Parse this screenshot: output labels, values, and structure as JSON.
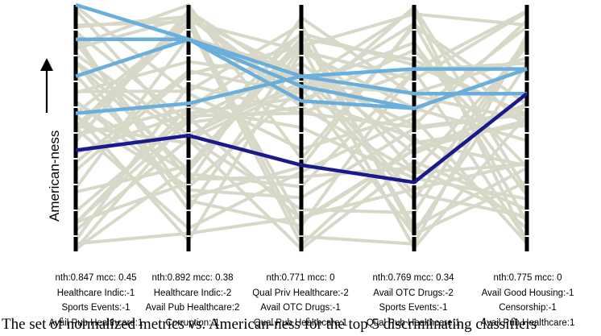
{
  "chart_data": {
    "type": "parallel-coordinates",
    "ylabel": "American-ness",
    "axes": [
      {
        "lines": [
          "nth:0.847 mcc: 0.45",
          "Healthcare Indic:-1",
          "Sports Events:-1",
          "Avail Pub Healthcare:1"
        ]
      },
      {
        "lines": [
          "nth:0.892 mcc: 0.38",
          "Healthcare Indic:-2",
          "Avail Pub Healthcare:2",
          "Corruption:-1"
        ]
      },
      {
        "lines": [
          "nth:0.771 mcc: 0",
          "Qual Priv Healthcare:-2",
          "Avail OTC Drugs:-1",
          "Qual Pub Healthcare:1"
        ]
      },
      {
        "lines": [
          "nth:0.769 mcc: 0.34",
          "Avail OTC Drugs:-2",
          "Sports Events:-1",
          "Qual Pub Healthcare:1"
        ]
      },
      {
        "lines": [
          "nth:0.775 mcc: 0",
          "Avail Good Housing:-1",
          "Censorship:-1",
          "Avail Pub Healthcare:1"
        ]
      }
    ],
    "ylim": [
      0,
      1
    ],
    "highlight_lines": [
      {
        "color": "#6aaedb",
        "values": [
          1.0,
          0.86,
          0.67,
          0.58,
          0.74
        ]
      },
      {
        "color": "#6aaedb",
        "values": [
          0.86,
          0.86,
          0.61,
          0.58,
          0.74
        ]
      },
      {
        "color": "#6aaedb",
        "values": [
          0.71,
          0.86,
          0.71,
          0.64,
          0.64
        ]
      },
      {
        "color": "#6aaedb",
        "values": [
          0.56,
          0.6,
          0.71,
          0.74,
          0.74
        ]
      },
      {
        "color": "#1a1a8c",
        "values": [
          0.41,
          0.47,
          0.35,
          0.28,
          0.64
        ]
      }
    ],
    "background_color": "#d8d8c8"
  },
  "caption": "The set of normalized metrics vs. American-ness for the top 5 discriminating classifiers"
}
